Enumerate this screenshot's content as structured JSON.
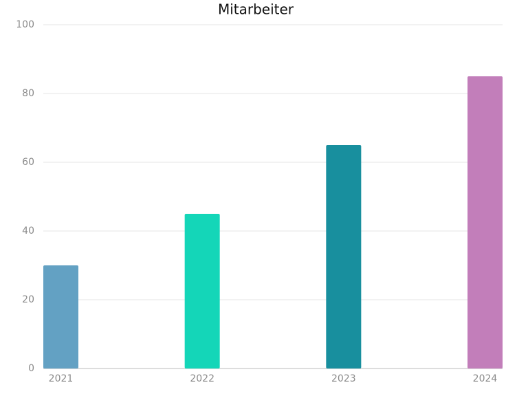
{
  "chart_data": {
    "type": "bar",
    "title": "Mitarbeiter",
    "categories": [
      "2021",
      "2022",
      "2023",
      "2024"
    ],
    "values": [
      30,
      45,
      65,
      85
    ],
    "colors": [
      "#63a1c3",
      "#14d6b8",
      "#188f9e",
      "#c27eba"
    ],
    "ylim": [
      0,
      100
    ],
    "yticks": [
      0,
      20,
      40,
      60,
      80,
      100
    ],
    "grid": true
  }
}
